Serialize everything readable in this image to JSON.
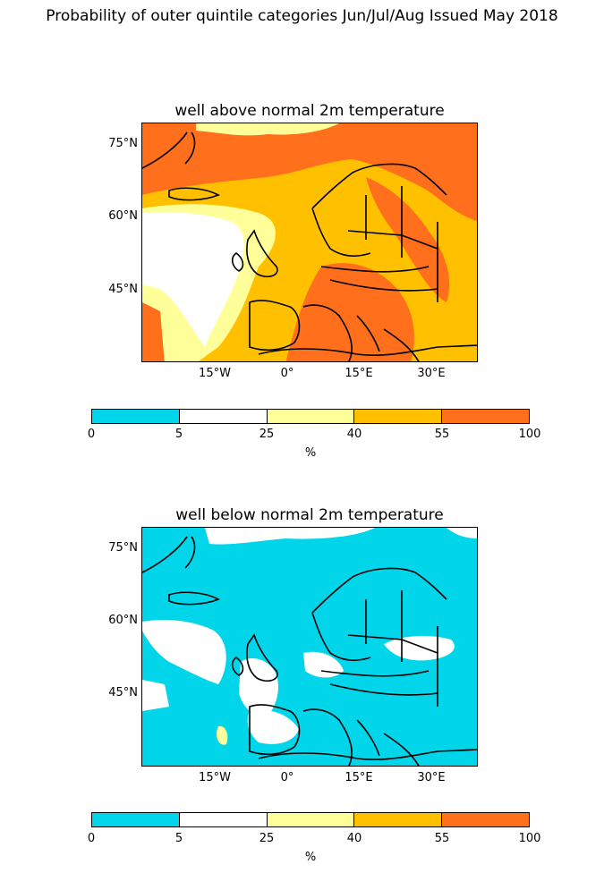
{
  "title": "Probability of outer quintile categories Jun/Jul/Aug Issued May 2018",
  "panels": [
    {
      "title": "well above normal 2m temperature"
    },
    {
      "title": "well below normal 2m temperature"
    }
  ],
  "axes": {
    "lat_ticks": [
      "75°N",
      "60°N",
      "45°N"
    ],
    "lon_ticks": [
      "15°W",
      "0°",
      "15°E",
      "30°E"
    ]
  },
  "colorbar": {
    "ticks": [
      "0",
      "5",
      "25",
      "40",
      "55",
      "100"
    ],
    "unit": "%",
    "colors": [
      "#00d5ea",
      "#ffffff",
      "#ffff99",
      "#ffc000",
      "#ff6f1c"
    ]
  }
}
